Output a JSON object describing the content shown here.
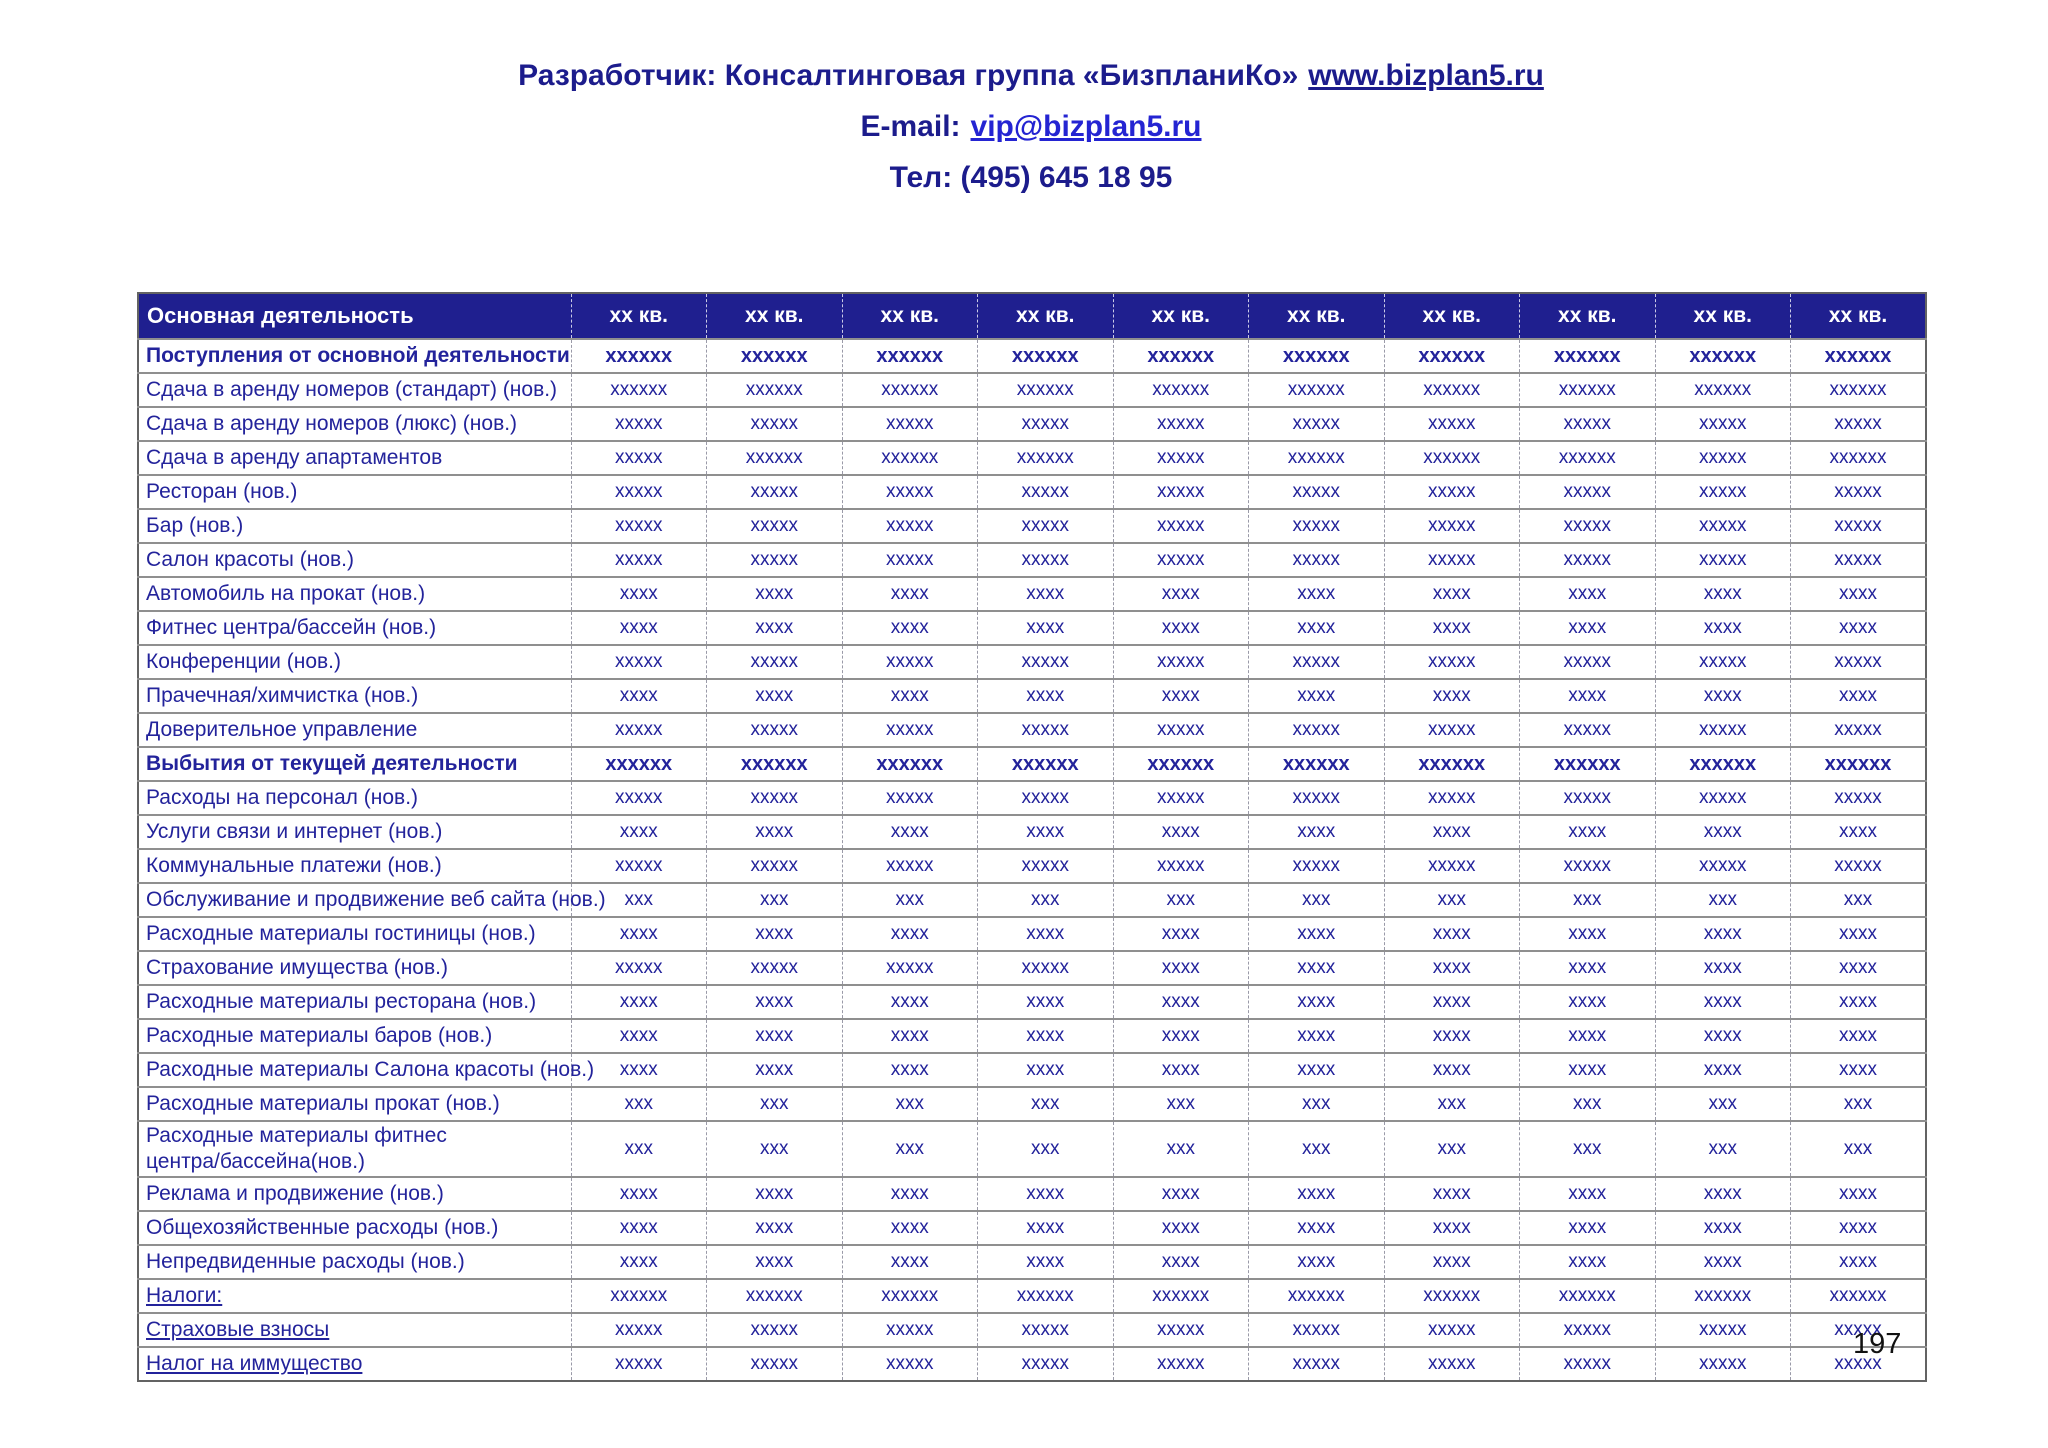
{
  "header": {
    "developer_prefix": "Разработчик: Консалтинговая группа «БизпланиКо»",
    "developer_link": "www.bizplan5.ru",
    "email_prefix": "E-mail:",
    "email_link": "vip@bizplan5.ru",
    "phone": "Тел: (495) 645 18 95"
  },
  "colors": {
    "table_header_bg": "#1f1f8f",
    "table_text": "#23239b",
    "heading_text": "#1c1c8c",
    "link_blue": "#2424d2",
    "page_number_color": "#111111"
  },
  "table": {
    "corner_label": "Основная деятельность",
    "quarter_label": "хх кв.",
    "quarter_columns": 10,
    "rows": [
      {
        "label": "Поступления от основной деятельности",
        "emphasis": "bold",
        "values": [
          "хххххх",
          "хххххх",
          "хххххх",
          "хххххх",
          "хххххх",
          "хххххх",
          "хххххх",
          "хххххх",
          "хххххх",
          "хххххх"
        ]
      },
      {
        "label": "Сдача в аренду номеров (стандарт) (нов.)",
        "emphasis": "none",
        "values": [
          "хххххх",
          "хххххх",
          "хххххх",
          "хххххх",
          "хххххх",
          "хххххх",
          "хххххх",
          "хххххх",
          "хххххх",
          "хххххх"
        ]
      },
      {
        "label": "Сдача в аренду номеров (люкс) (нов.)",
        "emphasis": "none",
        "values": [
          "ххххх",
          "ххххх",
          "ххххх",
          "ххххх",
          "ххххх",
          "ххххх",
          "ххххх",
          "ххххх",
          "ххххх",
          "ххххх"
        ]
      },
      {
        "label": "Сдача в аренду апартаментов",
        "emphasis": "none",
        "values": [
          "ххххх",
          "хххххх",
          "хххххх",
          "хххххх",
          "ххххх",
          "хххххх",
          "хххххх",
          "хххххх",
          "ххххх",
          "хххххх"
        ]
      },
      {
        "label": "Ресторан (нов.)",
        "emphasis": "none",
        "values": [
          "ххххх",
          "ххххх",
          "ххххх",
          "ххххх",
          "ххххх",
          "ххххх",
          "ххххх",
          "ххххх",
          "ххххх",
          "ххххх"
        ]
      },
      {
        "label": "Бар (нов.)",
        "emphasis": "none",
        "values": [
          "ххххх",
          "ххххх",
          "ххххх",
          "ххххх",
          "ххххх",
          "ххххх",
          "ххххх",
          "ххххх",
          "ххххх",
          "ххххх"
        ]
      },
      {
        "label": "Салон красоты (нов.)",
        "emphasis": "none",
        "values": [
          "ххххх",
          "ххххх",
          "ххххх",
          "ххххх",
          "ххххх",
          "ххххх",
          "ххххх",
          "ххххх",
          "ххххх",
          "ххххх"
        ]
      },
      {
        "label": "Автомобиль на прокат (нов.)",
        "emphasis": "none",
        "values": [
          "хххх",
          "хххх",
          "хххх",
          "хххх",
          "хххх",
          "хххх",
          "хххх",
          "хххх",
          "хххх",
          "хххх"
        ]
      },
      {
        "label": "Фитнес центра/бассейн (нов.)",
        "emphasis": "none",
        "values": [
          "хххх",
          "хххх",
          "хххх",
          "хххх",
          "хххх",
          "хххх",
          "хххх",
          "хххх",
          "хххх",
          "хххх"
        ]
      },
      {
        "label": "Конференции (нов.)",
        "emphasis": "none",
        "values": [
          "ххххх",
          "ххххх",
          "ххххх",
          "ххххх",
          "ххххх",
          "ххххх",
          "ххххх",
          "ххххх",
          "ххххх",
          "ххххх"
        ]
      },
      {
        "label": "Прачечная/химчистка (нов.)",
        "emphasis": "none",
        "values": [
          "хххх",
          "хххх",
          "хххх",
          "хххх",
          "хххх",
          "хххх",
          "хххх",
          "хххх",
          "хххх",
          "хххх"
        ]
      },
      {
        "label": "Доверительное управление",
        "emphasis": "none",
        "values": [
          "ххххх",
          "ххххх",
          "ххххх",
          "ххххх",
          "ххххх",
          "ххххх",
          "ххххх",
          "ххххх",
          "ххххх",
          "ххххх"
        ]
      },
      {
        "label": "Выбытия от текущей деятельности",
        "emphasis": "bold",
        "values": [
          "хххххх",
          "хххххх",
          "хххххх",
          "хххххх",
          "хххххх",
          "хххххх",
          "хххххх",
          "хххххх",
          "хххххх",
          "хххххх"
        ]
      },
      {
        "label": "Расходы на персонал (нов.)",
        "emphasis": "none",
        "values": [
          "ххххх",
          "ххххх",
          "ххххх",
          "ххххх",
          "ххххх",
          "ххххх",
          "ххххх",
          "ххххх",
          "ххххх",
          "ххххх"
        ]
      },
      {
        "label": "Услуги связи и интернет (нов.)",
        "emphasis": "none",
        "values": [
          "хххх",
          "хххх",
          "хххх",
          "хххх",
          "хххх",
          "хххх",
          "хххх",
          "хххх",
          "хххх",
          "хххх"
        ]
      },
      {
        "label": "Коммунальные платежи (нов.)",
        "emphasis": "none",
        "values": [
          "ххххх",
          "ххххх",
          "ххххх",
          "ххххх",
          "ххххх",
          "ххххх",
          "ххххх",
          "ххххх",
          "ххххх",
          "ххххх"
        ]
      },
      {
        "label": "Обслуживание и продвижение веб сайта (нов.)",
        "emphasis": "none",
        "values": [
          "ххх",
          "ххх",
          "ххх",
          "ххх",
          "ххх",
          "ххх",
          "ххх",
          "ххх",
          "ххх",
          "ххх"
        ]
      },
      {
        "label": "Расходные материалы гостиницы (нов.)",
        "emphasis": "none",
        "values": [
          "хххх",
          "хххх",
          "хххх",
          "хххх",
          "хххх",
          "хххх",
          "хххх",
          "хххх",
          "хххх",
          "хххх"
        ]
      },
      {
        "label": "Страхование имущества (нов.)",
        "emphasis": "none",
        "values": [
          "ххххх",
          "ххххх",
          "ххххх",
          "ххххх",
          "хххх",
          "хххх",
          "хххх",
          "хххх",
          "хххх",
          "хххх"
        ]
      },
      {
        "label": "Расходные материалы ресторана (нов.)",
        "emphasis": "none",
        "values": [
          "хххх",
          "хххх",
          "хххх",
          "хххх",
          "хххх",
          "хххх",
          "хххх",
          "хххх",
          "хххх",
          "хххх"
        ]
      },
      {
        "label": "Расходные материалы баров (нов.)",
        "emphasis": "none",
        "values": [
          "хххх",
          "хххх",
          "хххх",
          "хххх",
          "хххх",
          "хххх",
          "хххх",
          "хххх",
          "хххх",
          "хххх"
        ]
      },
      {
        "label": "Расходные материалы Салона красоты (нов.)",
        "emphasis": "none",
        "values": [
          "хххх",
          "хххх",
          "хххх",
          "хххх",
          "хххх",
          "хххх",
          "хххх",
          "хххх",
          "хххх",
          "хххх"
        ]
      },
      {
        "label": "Расходные материалы прокат (нов.)",
        "emphasis": "none",
        "values": [
          "ххх",
          "ххх",
          "ххх",
          "ххх",
          "ххх",
          "ххх",
          "ххх",
          "ххх",
          "ххх",
          "ххх"
        ]
      },
      {
        "label": "Расходные материалы фитнес\nцентра/бассейна(нов.)",
        "emphasis": "none",
        "values": [
          "ххх",
          "ххх",
          "ххх",
          "ххх",
          "ххх",
          "ххх",
          "ххх",
          "ххх",
          "ххх",
          "ххх"
        ]
      },
      {
        "label": "Реклама и продвижение (нов.)",
        "emphasis": "none",
        "values": [
          "хххх",
          "хххх",
          "хххх",
          "хххх",
          "хххх",
          "хххх",
          "хххх",
          "хххх",
          "хххх",
          "хххх"
        ]
      },
      {
        "label": "Общехозяйственные расходы (нов.)",
        "emphasis": "none",
        "values": [
          "хххх",
          "хххх",
          "хххх",
          "хххх",
          "хххх",
          "хххх",
          "хххх",
          "хххх",
          "хххх",
          "хххх"
        ]
      },
      {
        "label": "Непредвиденные расходы (нов.)",
        "emphasis": "none",
        "values": [
          "хххх",
          "хххх",
          "хххх",
          "хххх",
          "хххх",
          "хххх",
          "хххх",
          "хххх",
          "хххх",
          "хххх"
        ]
      },
      {
        "label": "Налоги:",
        "emphasis": "underline",
        "values": [
          "хххххх",
          "хххххх",
          "хххххх",
          "хххххх",
          "хххххх",
          "хххххх",
          "хххххх",
          "хххххх",
          "хххххх",
          "хххххх"
        ]
      },
      {
        "label": "Страховые взносы",
        "emphasis": "underline",
        "values": [
          "ххххх",
          "ххххх",
          "ххххх",
          "ххххх",
          "ххххх",
          "ххххх",
          "ххххх",
          "ххххх",
          "ххххх",
          "ххххх"
        ]
      },
      {
        "label": "Налог на иммущество",
        "emphasis": "underline",
        "values": [
          "ххххх",
          "ххххх",
          "ххххх",
          "ххххх",
          "ххххх",
          "ххххх",
          "ххххх",
          "ххххх",
          "ххххх",
          "ххххх"
        ]
      }
    ]
  },
  "footer": {
    "page_number": "197"
  }
}
